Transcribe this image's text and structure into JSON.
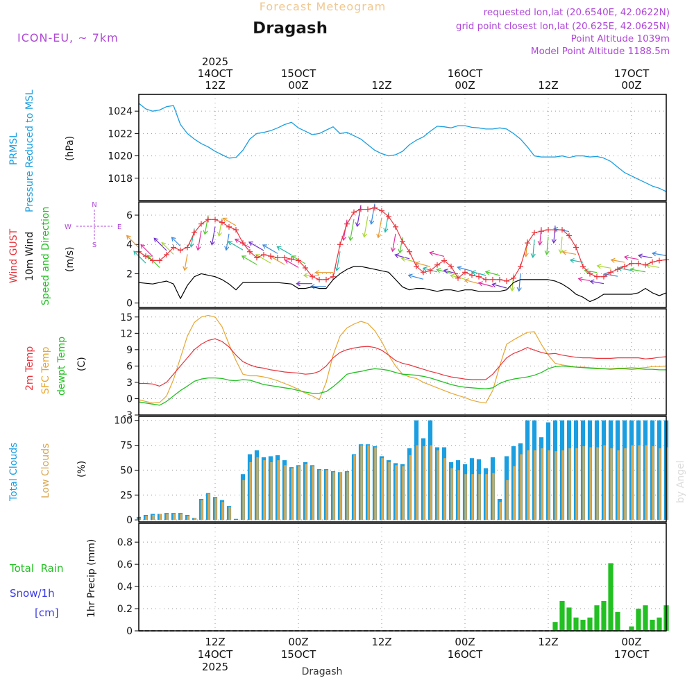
{
  "header": {
    "super_title": "Forecast Meteogram",
    "location": "Dragash",
    "model": "ICON-EU, ~ 7km",
    "requested": "requested lon,lat (20.6540E, 42.0622N)",
    "gridpoint": "grid point closest lon,lat (20.625E, 42.0625N)",
    "point_alt": "Point Altitude 1039m",
    "model_alt": "Model Point Altitude 1188.5m",
    "credit": "by Angel",
    "footer_location": "Dragash"
  },
  "time_axis": {
    "top_labels": [
      {
        "t": 12,
        "lines": [
          "2025",
          "14OCT",
          "12Z"
        ]
      },
      {
        "t": 24,
        "lines": [
          "15OCT",
          "00Z"
        ]
      },
      {
        "t": 36,
        "lines": [
          "12Z"
        ]
      },
      {
        "t": 48,
        "lines": [
          "16OCT",
          "00Z"
        ]
      },
      {
        "t": 60,
        "lines": [
          "12Z"
        ]
      },
      {
        "t": 72,
        "lines": [
          "17OCT",
          "00Z"
        ]
      }
    ],
    "bottom_labels": [
      {
        "t": 12,
        "lines": [
          "12Z",
          "14OCT",
          "2025"
        ]
      },
      {
        "t": 24,
        "lines": [
          "00Z",
          "15OCT"
        ]
      },
      {
        "t": 36,
        "lines": [
          "12Z"
        ]
      },
      {
        "t": 48,
        "lines": [
          "00Z",
          "16OCT"
        ]
      },
      {
        "t": 60,
        "lines": [
          "12Z"
        ]
      },
      {
        "t": 72,
        "lines": [
          "00Z",
          "17OCT"
        ]
      }
    ],
    "range_hours": [
      1,
      77
    ]
  },
  "colors": {
    "pressure": "#1a9ee0",
    "gust": "#e8343c",
    "wind": "#000000",
    "wind_label": "#22c022",
    "temp": "#e8343c",
    "sfc_temp": "#e8a630",
    "dewpt": "#22c022",
    "total_clouds": "#1a9ee0",
    "low_clouds": "#d8a850",
    "rain": "#22c022",
    "snow": "#3838e8",
    "title_orange": "#f0c890",
    "violet": "#b048d8"
  },
  "chart_data": [
    {
      "type": "line",
      "name": "pressure",
      "labels": {
        "line1": "PRMSL",
        "line2": "Pressure Reduced to MSL",
        "unit": "(hPa)"
      },
      "ylim": [
        1016,
        1025.5
      ],
      "yticks": [
        1018,
        1020,
        1022,
        1024
      ],
      "x": [
        1,
        2,
        3,
        4,
        5,
        6,
        7,
        8,
        9,
        10,
        11,
        12,
        13,
        14,
        15,
        16,
        17,
        18,
        19,
        20,
        21,
        22,
        23,
        24,
        25,
        26,
        27,
        28,
        29,
        30,
        31,
        32,
        33,
        34,
        35,
        36,
        37,
        38,
        39,
        40,
        41,
        42,
        43,
        44,
        45,
        46,
        47,
        48,
        49,
        50,
        51,
        52,
        53,
        54,
        55,
        56,
        57,
        58,
        59,
        60,
        61,
        62,
        63,
        64,
        65,
        66,
        67,
        68,
        69,
        70,
        71,
        72,
        73,
        74,
        75,
        76,
        77
      ],
      "values": [
        1024.7,
        1024.2,
        1024.0,
        1024.1,
        1024.4,
        1024.5,
        1022.8,
        1022.0,
        1021.5,
        1021.1,
        1020.8,
        1020.4,
        1020.1,
        1019.8,
        1019.85,
        1020.5,
        1021.5,
        1022.0,
        1022.1,
        1022.25,
        1022.5,
        1022.8,
        1023.0,
        1022.5,
        1022.2,
        1021.9,
        1022.0,
        1022.3,
        1022.6,
        1022.0,
        1022.1,
        1021.8,
        1021.5,
        1021.0,
        1020.5,
        1020.2,
        1020.0,
        1020.1,
        1020.4,
        1021.0,
        1021.4,
        1021.7,
        1022.2,
        1022.65,
        1022.6,
        1022.5,
        1022.7,
        1022.7,
        1022.55,
        1022.5,
        1022.4,
        1022.4,
        1022.5,
        1022.4,
        1022.0,
        1021.5,
        1020.8,
        1020.0,
        1019.9,
        1019.9,
        1019.9,
        1020.0,
        1019.85,
        1020.0,
        1020.0,
        1019.9,
        1019.95,
        1019.8,
        1019.5,
        1019.0,
        1018.5,
        1018.2,
        1017.9,
        1017.6,
        1017.3,
        1017.1,
        1016.8
      ]
    },
    {
      "type": "line",
      "name": "wind",
      "labels": {
        "gust": "Wind GUST",
        "wind": "10m Wind",
        "dir": "Speed and Direction",
        "unit": "(m/s)"
      },
      "compass": {
        "n": "N",
        "s": "S",
        "e": "E",
        "w": "W"
      },
      "ylim": [
        -0.3,
        6.9
      ],
      "yticks": [
        0,
        2,
        4,
        6
      ],
      "x": [
        1,
        2,
        3,
        4,
        5,
        6,
        7,
        8,
        9,
        10,
        11,
        12,
        13,
        14,
        15,
        16,
        17,
        18,
        19,
        20,
        21,
        22,
        23,
        24,
        25,
        26,
        27,
        28,
        29,
        30,
        31,
        32,
        33,
        34,
        35,
        36,
        37,
        38,
        39,
        40,
        41,
        42,
        43,
        44,
        45,
        46,
        47,
        48,
        49,
        50,
        51,
        52,
        53,
        54,
        55,
        56,
        57,
        58,
        59,
        60,
        61,
        62,
        63,
        64,
        65,
        66,
        67,
        68,
        69,
        70,
        71,
        72,
        73,
        74,
        75,
        76,
        77
      ],
      "gust": [
        3.5,
        3.2,
        2.9,
        2.9,
        3.3,
        3.8,
        3.6,
        3.8,
        4.8,
        5.4,
        5.7,
        5.7,
        5.5,
        5.2,
        5.0,
        4.1,
        3.5,
        3.1,
        3.3,
        3.2,
        3.1,
        3.1,
        3.0,
        2.9,
        2.4,
        1.8,
        1.6,
        1.6,
        1.8,
        4.0,
        5.4,
        6.2,
        6.4,
        6.4,
        6.5,
        6.3,
        5.9,
        5.2,
        4.2,
        3.5,
        2.5,
        2.1,
        2.2,
        2.6,
        2.9,
        2.5,
        1.7,
        2.1,
        1.9,
        1.8,
        1.6,
        1.6,
        1.6,
        1.5,
        1.7,
        2.5,
        4.1,
        4.8,
        4.9,
        5.0,
        5.0,
        5.0,
        4.6,
        3.8,
        2.5,
        2.0,
        1.8,
        1.8,
        2.1,
        2.3,
        2.5,
        2.7,
        2.7,
        2.6,
        2.8,
        2.9,
        2.95
      ],
      "wind": [
        1.4,
        1.35,
        1.3,
        1.4,
        1.5,
        1.3,
        0.3,
        1.2,
        1.8,
        2.0,
        1.9,
        1.8,
        1.6,
        1.3,
        0.9,
        1.4,
        1.4,
        1.4,
        1.4,
        1.4,
        1.4,
        1.35,
        1.3,
        1.0,
        1.0,
        1.1,
        1.0,
        1.0,
        1.6,
        2.0,
        2.3,
        2.5,
        2.5,
        2.4,
        2.3,
        2.2,
        2.1,
        1.6,
        1.1,
        0.9,
        1.0,
        1.0,
        0.9,
        0.8,
        0.9,
        0.9,
        0.8,
        0.9,
        0.9,
        0.8,
        0.8,
        0.8,
        0.8,
        0.9,
        1.4,
        1.6,
        1.6,
        1.6,
        1.6,
        1.6,
        1.5,
        1.3,
        1.0,
        0.6,
        0.4,
        0.1,
        0.3,
        0.6,
        0.6,
        0.6,
        0.6,
        0.6,
        0.7,
        1.0,
        0.7,
        0.5,
        0.7
      ]
    },
    {
      "type": "line",
      "name": "temperature",
      "labels": {
        "t2m": "2m Temp",
        "sfc": "SFC Temp",
        "dewpt": "dewpt Temp",
        "unit": "(C)"
      },
      "ylim": [
        -3,
        16.5
      ],
      "yticks": [
        -3,
        0,
        3,
        6,
        9,
        12,
        15
      ],
      "x": [
        1,
        2,
        3,
        4,
        5,
        6,
        7,
        8,
        9,
        10,
        11,
        12,
        13,
        14,
        15,
        16,
        17,
        18,
        19,
        20,
        21,
        22,
        23,
        24,
        25,
        26,
        27,
        28,
        29,
        30,
        31,
        32,
        33,
        34,
        35,
        36,
        37,
        38,
        39,
        40,
        41,
        42,
        43,
        44,
        45,
        46,
        47,
        48,
        49,
        50,
        51,
        52,
        53,
        54,
        55,
        56,
        57,
        58,
        59,
        60,
        61,
        62,
        63,
        64,
        65,
        66,
        67,
        68,
        69,
        70,
        71,
        72,
        73,
        74,
        75,
        76,
        77
      ],
      "temp2m": [
        2.8,
        2.8,
        2.7,
        2.3,
        3.0,
        4.5,
        6.0,
        7.5,
        9.0,
        10.0,
        10.7,
        11.0,
        10.5,
        9.5,
        8.0,
        6.8,
        6.2,
        5.8,
        5.6,
        5.3,
        5.1,
        4.9,
        4.8,
        4.7,
        4.5,
        4.6,
        5.0,
        6.0,
        7.5,
        8.5,
        9.0,
        9.3,
        9.5,
        9.6,
        9.4,
        8.9,
        8.0,
        7.0,
        6.5,
        6.2,
        5.8,
        5.4,
        5.0,
        4.7,
        4.3,
        4.0,
        3.8,
        3.6,
        3.5,
        3.5,
        3.5,
        4.5,
        6.0,
        7.5,
        8.3,
        8.8,
        9.4,
        8.9,
        8.5,
        8.2,
        8.3,
        8.0,
        7.8,
        7.6,
        7.5,
        7.5,
        7.4,
        7.4,
        7.4,
        7.5,
        7.5,
        7.5,
        7.5,
        7.3,
        7.4,
        7.6,
        7.7
      ],
      "sfc": [
        -0.2,
        -0.5,
        -0.8,
        -0.7,
        0.5,
        3.5,
        7.5,
        11.5,
        14.0,
        15.0,
        15.3,
        15.0,
        13.2,
        10.0,
        7.0,
        4.5,
        4.2,
        4.2,
        4.0,
        3.7,
        3.3,
        2.8,
        2.3,
        1.7,
        1.0,
        0.5,
        -0.2,
        3.0,
        8.0,
        11.5,
        13.0,
        13.7,
        14.2,
        13.8,
        12.5,
        10.5,
        8.0,
        6.0,
        4.5,
        4.0,
        3.7,
        3.0,
        2.5,
        2.0,
        1.5,
        1.0,
        0.6,
        0.2,
        -0.3,
        -0.6,
        -0.8,
        1.5,
        6.0,
        10.0,
        10.8,
        11.5,
        12.2,
        12.3,
        10.0,
        8.0,
        6.5,
        6.2,
        6.0,
        5.8,
        5.8,
        5.7,
        5.6,
        5.5,
        5.5,
        5.6,
        5.6,
        5.7,
        5.6,
        5.7,
        5.9,
        5.9,
        6.0
      ],
      "dewpt": [
        -0.6,
        -0.8,
        -1.0,
        -1.2,
        -0.5,
        0.5,
        1.5,
        2.3,
        3.2,
        3.6,
        3.8,
        3.8,
        3.7,
        3.4,
        3.3,
        3.5,
        3.4,
        3.0,
        2.6,
        2.4,
        2.2,
        2.0,
        1.8,
        1.5,
        1.2,
        1.0,
        1.0,
        1.3,
        2.2,
        3.3,
        4.5,
        4.8,
        5.0,
        5.3,
        5.5,
        5.4,
        5.2,
        4.8,
        4.5,
        4.4,
        4.3,
        4.1,
        3.8,
        3.4,
        3.0,
        2.6,
        2.3,
        2.1,
        2.0,
        1.9,
        1.8,
        2.0,
        2.8,
        3.3,
        3.6,
        3.8,
        4.0,
        4.3,
        4.8,
        5.5,
        5.9,
        6.0,
        5.9,
        5.8,
        5.7,
        5.6,
        5.5,
        5.5,
        5.4,
        5.5,
        5.5,
        5.4,
        5.5,
        5.4,
        5.4,
        5.3,
        5.3
      ]
    },
    {
      "type": "bar",
      "name": "clouds",
      "labels": {
        "total": "Total Clouds",
        "low": "Low Clouds",
        "unit": "(%)"
      },
      "ylim": [
        -2,
        104
      ],
      "yticks": [
        0,
        25,
        50,
        75,
        100
      ],
      "x": [
        1,
        2,
        3,
        4,
        5,
        6,
        7,
        8,
        9,
        10,
        11,
        12,
        13,
        14,
        15,
        16,
        17,
        18,
        19,
        20,
        21,
        22,
        23,
        24,
        25,
        26,
        27,
        28,
        29,
        30,
        31,
        32,
        33,
        34,
        35,
        36,
        37,
        38,
        39,
        40,
        41,
        42,
        43,
        44,
        45,
        46,
        47,
        48,
        49,
        50,
        51,
        52,
        53,
        54,
        55,
        56,
        57,
        58,
        59,
        60,
        61,
        62,
        63,
        64,
        65,
        66,
        67,
        68,
        69,
        70,
        71,
        72,
        73,
        74,
        75,
        76,
        77
      ],
      "total": [
        3,
        5,
        6,
        6,
        7,
        7,
        7,
        5,
        2,
        21,
        27,
        23,
        20,
        14,
        1,
        46,
        66,
        70,
        63,
        64,
        65,
        60,
        53,
        55,
        58,
        55,
        51,
        51,
        49,
        48,
        49,
        66,
        76,
        76,
        74,
        64,
        60,
        57,
        56,
        72,
        100,
        82,
        100,
        73,
        73,
        58,
        60,
        56,
        62,
        61,
        52,
        63,
        21,
        64,
        74,
        77,
        100,
        100,
        83,
        98,
        100,
        100,
        100,
        100,
        100,
        100,
        100,
        100,
        100,
        100,
        100,
        100,
        100,
        100,
        100,
        100,
        100
      ],
      "low": [
        2,
        4,
        5,
        6,
        6,
        6,
        6,
        4,
        2,
        20,
        26,
        22,
        18,
        13,
        0,
        40,
        58,
        63,
        60,
        58,
        60,
        55,
        52,
        54,
        56,
        54,
        50,
        50,
        48,
        48,
        48,
        65,
        75,
        75,
        73,
        62,
        58,
        55,
        54,
        65,
        75,
        74,
        75,
        70,
        62,
        52,
        50,
        46,
        46,
        46,
        46,
        47,
        18,
        40,
        54,
        66,
        70,
        70,
        72,
        70,
        69,
        70,
        72,
        72,
        74,
        73,
        73,
        75,
        72,
        70,
        72,
        75,
        75,
        75,
        74,
        72,
        73
      ]
    },
    {
      "type": "bar",
      "name": "precipitation",
      "labels": {
        "rain": "Total  Rain",
        "snow": "Snow/1h",
        "cm": "[cm]",
        "unit": "1hr Precip (mm)"
      },
      "ylim": [
        0,
        0.97
      ],
      "yticks": [
        0,
        0.2,
        0.4,
        0.6,
        0.8
      ],
      "x": [
        61,
        62,
        63,
        64,
        65,
        66,
        67,
        68,
        69,
        70,
        71,
        72,
        73,
        74,
        75,
        76,
        77
      ],
      "values": [
        0.08,
        0.27,
        0.21,
        0.12,
        0.1,
        0.12,
        0.23,
        0.27,
        0.61,
        0.17,
        0,
        0.04,
        0.2,
        0.23,
        0.1,
        0.12,
        0.23
      ]
    }
  ]
}
